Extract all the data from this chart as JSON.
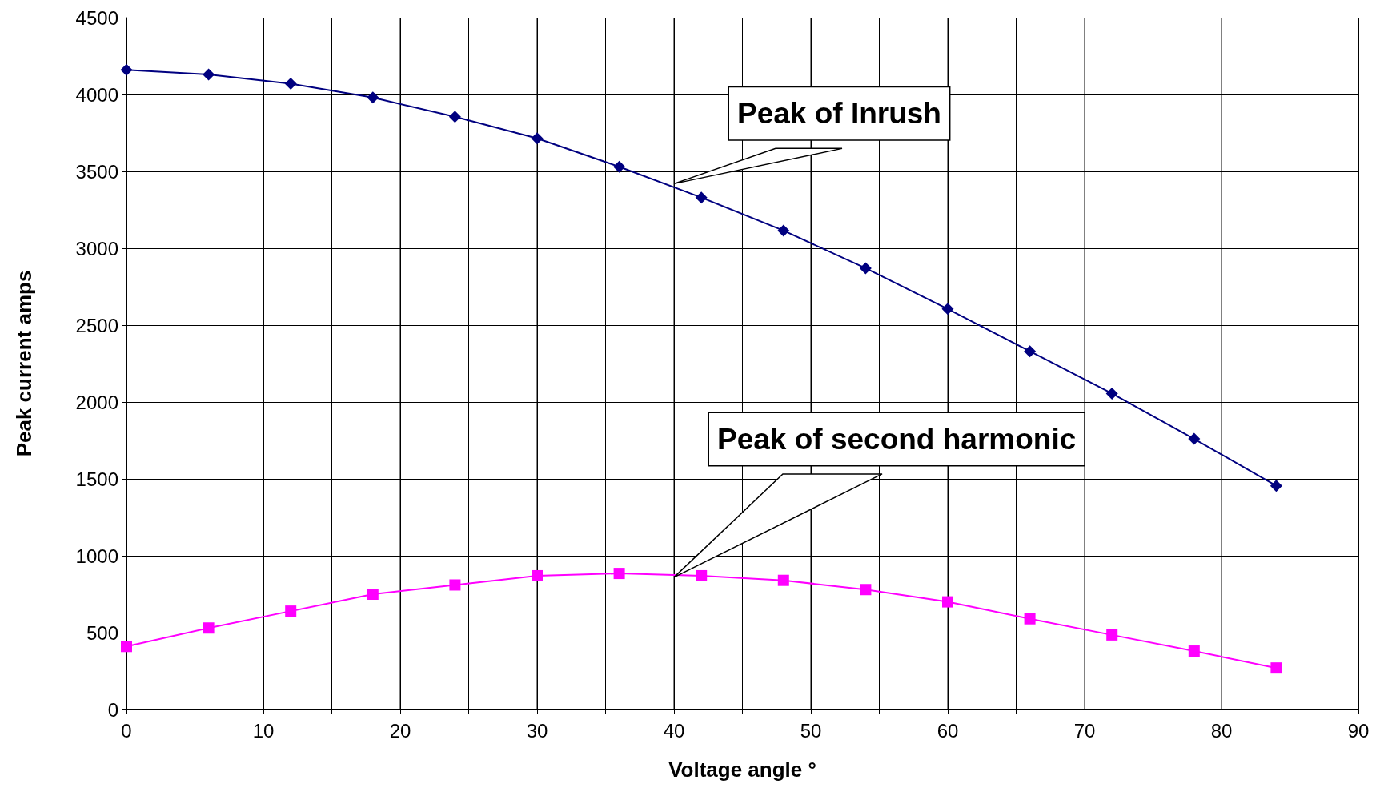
{
  "chart_data": {
    "type": "line",
    "xlabel": "Voltage angle °",
    "ylabel": "Peak current amps",
    "x": [
      0,
      6,
      12,
      18,
      24,
      30,
      36,
      42,
      48,
      54,
      60,
      66,
      72,
      78,
      84
    ],
    "series": [
      {
        "color": "#000080",
        "marker": "diamond",
        "values": [
          4160,
          4130,
          4070,
          3980,
          3855,
          3715,
          3530,
          3330,
          3115,
          2870,
          2605,
          2330,
          2055,
          1760,
          1455
        ]
      },
      {
        "color": "#ff00ff",
        "marker": "square",
        "values": [
          410,
          530,
          640,
          750,
          810,
          870,
          885,
          870,
          840,
          780,
          700,
          590,
          485,
          380,
          270
        ]
      }
    ],
    "xlim": [
      0,
      90
    ],
    "xticks": [
      0,
      {
        "value": 5,
        "label": null
      },
      10,
      {
        "value": 15,
        "label": null
      },
      20,
      {
        "value": 25,
        "label": null
      },
      30,
      {
        "value": 35,
        "label": null
      },
      40,
      {
        "value": 45,
        "label": null
      },
      50,
      {
        "value": 55,
        "label": null
      },
      60,
      {
        "value": 65,
        "label": null
      },
      70,
      {
        "value": 75,
        "label": null
      },
      80,
      {
        "value": 85,
        "label": null
      },
      90
    ],
    "ylim": [
      0,
      4500
    ],
    "yticks": [
      0,
      500,
      1000,
      1500,
      2000,
      2500,
      3000,
      3500,
      4000,
      4500
    ],
    "grid": true,
    "line_style": "solid",
    "annotations": [
      {
        "text": "Peak of Inrush",
        "x": 40,
        "y": 3420
      },
      {
        "text": "Peak of second harmonic",
        "x": 40,
        "y": 860
      }
    ]
  }
}
